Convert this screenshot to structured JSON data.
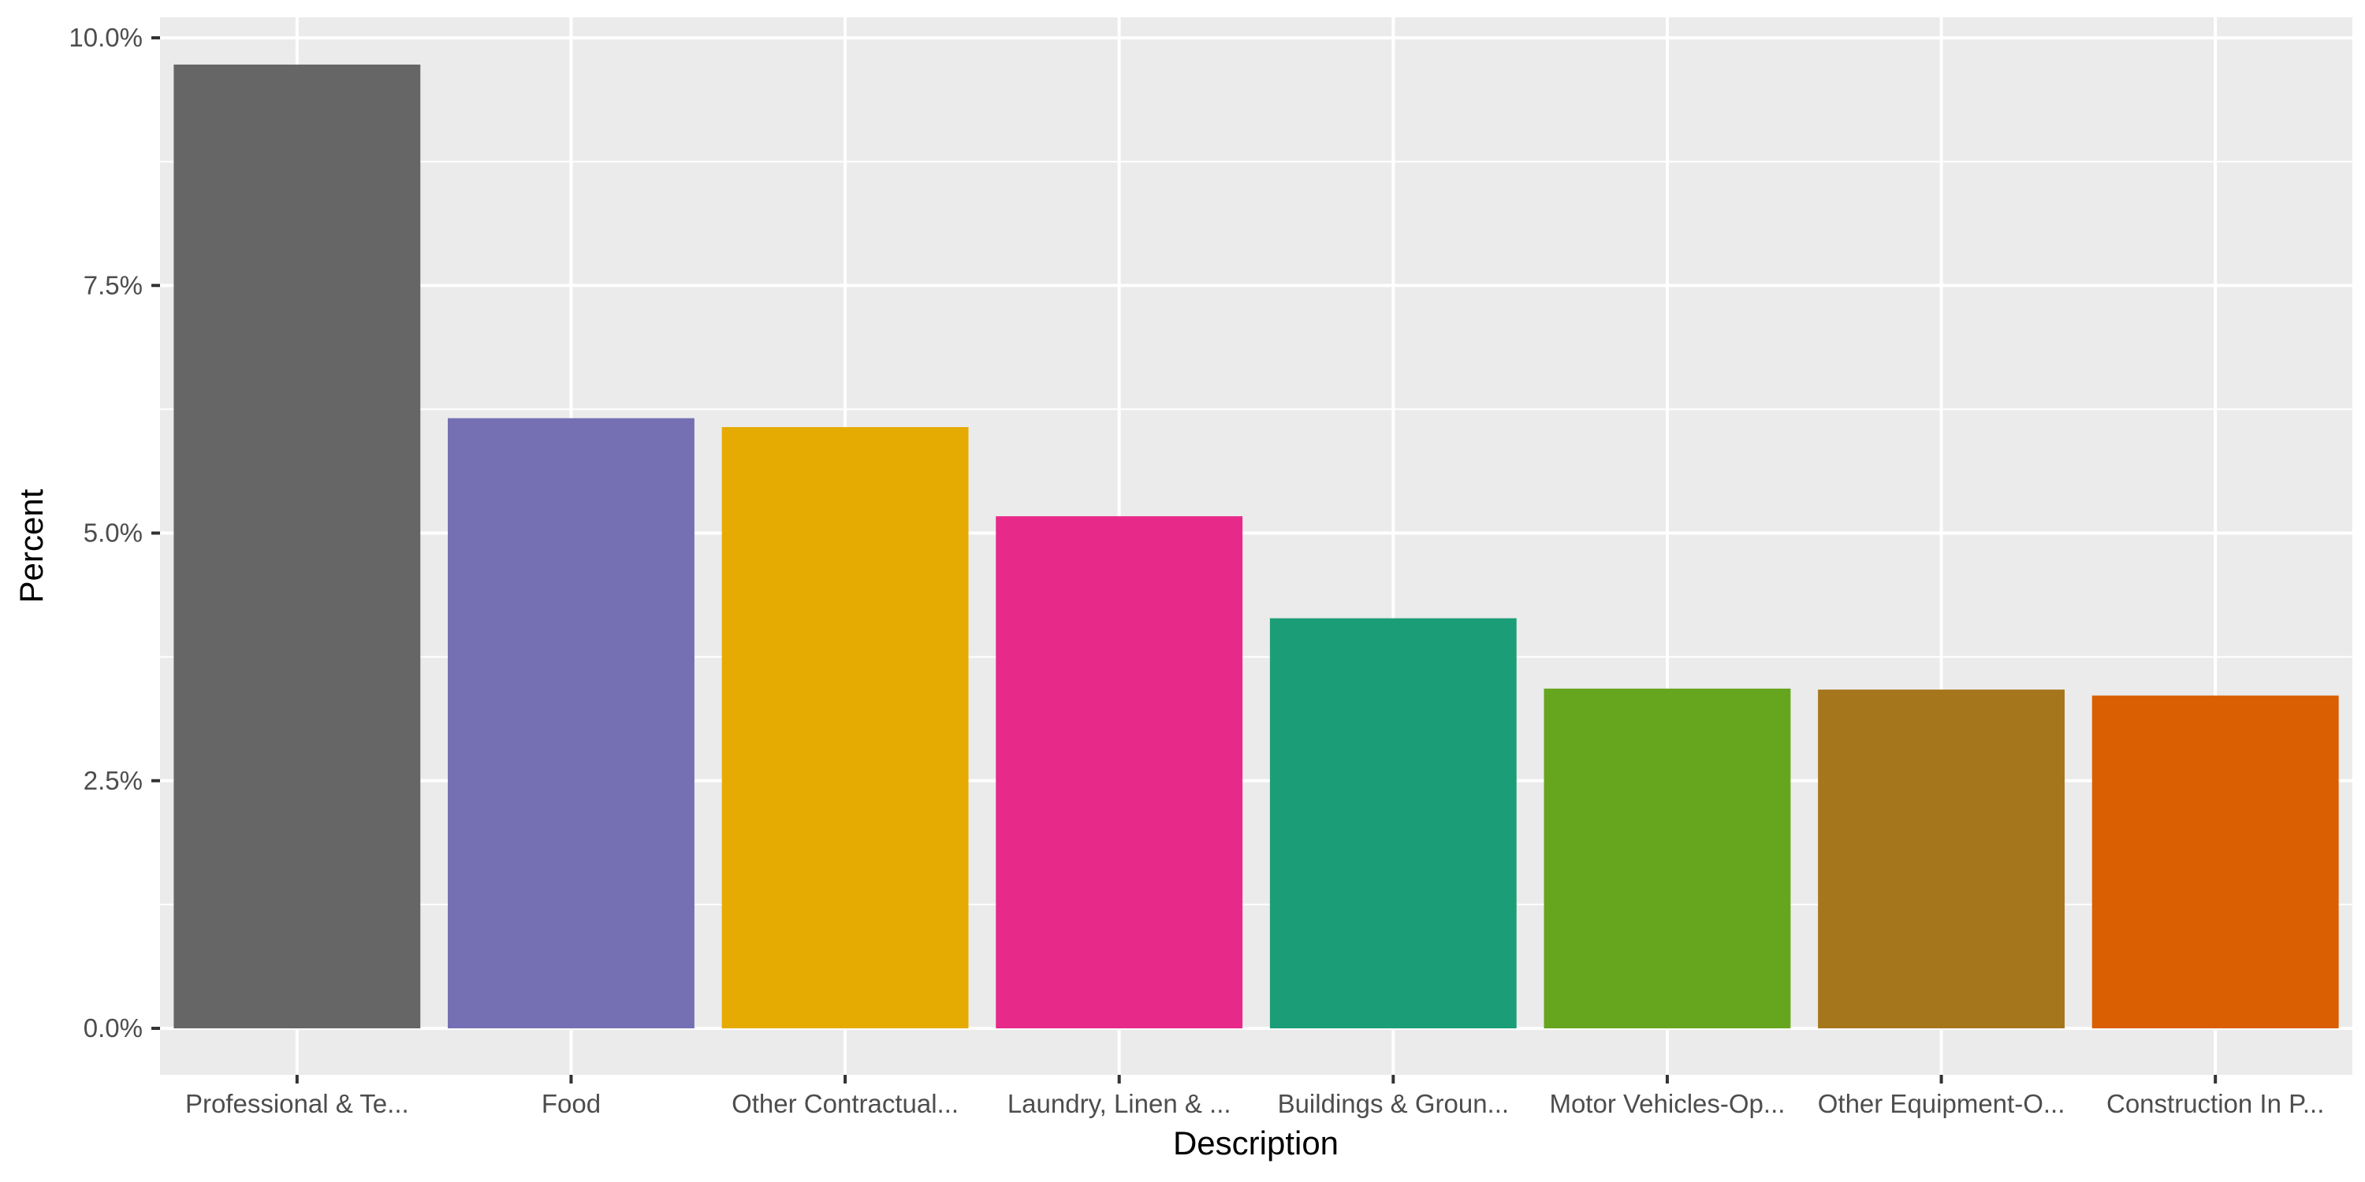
{
  "chart_data": {
    "type": "bar",
    "title": "",
    "xlabel": "Description",
    "ylabel": "Percent",
    "ylim": [
      0,
      10
    ],
    "y_ticks": [
      {
        "value": 0,
        "label": "0.0%"
      },
      {
        "value": 2.5,
        "label": "2.5%"
      },
      {
        "value": 5,
        "label": "5.0%"
      },
      {
        "value": 7.5,
        "label": "7.5%"
      },
      {
        "value": 10,
        "label": "10.0%"
      }
    ],
    "grid": true,
    "legend": "none",
    "categories": [
      "Professional & Te...",
      "Food",
      "Other Contractual...",
      "Laundry, Linen & ...",
      "Buildings & Groun...",
      "Motor Vehicles-Op...",
      "Other Equipment-O...",
      "Construction In P..."
    ],
    "values": [
      9.73,
      6.16,
      6.07,
      5.17,
      4.14,
      3.43,
      3.42,
      3.36
    ],
    "colors": [
      "#666666",
      "#7570b3",
      "#e6ab02",
      "#e7298a",
      "#1b9e77",
      "#66a61e",
      "#a6761d",
      "#d95f02"
    ]
  }
}
